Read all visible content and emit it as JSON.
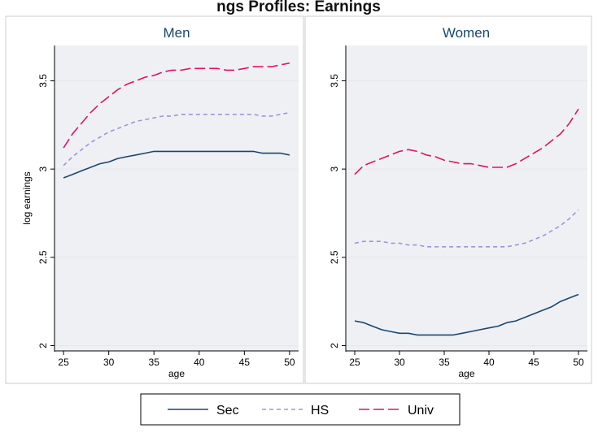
{
  "figure_title": "ngs Profiles: Earnings",
  "colors": {
    "sec": "#1a476f",
    "hs": "#9b96d8",
    "univ": "#e0116a",
    "grid": "#e8e8e8",
    "panel_bg": "#eef0f4"
  },
  "chart_data": [
    {
      "type": "line",
      "title": "Men",
      "xlabel": "age",
      "ylabel": "log earnings",
      "xlim": [
        24,
        51
      ],
      "ylim": [
        1.97,
        3.7
      ],
      "xticks": [
        25,
        30,
        35,
        40,
        45,
        50
      ],
      "yticks": [
        2,
        2.5,
        3,
        3.5
      ],
      "ytick_labels": [
        "2",
        "2.5",
        "3",
        "3.5"
      ],
      "grid": true,
      "x": [
        25,
        26,
        27,
        28,
        29,
        30,
        31,
        32,
        33,
        34,
        35,
        36,
        37,
        38,
        39,
        40,
        41,
        42,
        43,
        44,
        45,
        46,
        47,
        48,
        49,
        50
      ],
      "series": [
        {
          "name": "Sec",
          "dash": "solid",
          "values": [
            2.95,
            2.97,
            2.99,
            3.01,
            3.03,
            3.04,
            3.06,
            3.07,
            3.08,
            3.09,
            3.1,
            3.1,
            3.1,
            3.1,
            3.1,
            3.1,
            3.1,
            3.1,
            3.1,
            3.1,
            3.1,
            3.1,
            3.09,
            3.09,
            3.09,
            3.08
          ]
        },
        {
          "name": "HS",
          "dash": "short",
          "values": [
            3.02,
            3.07,
            3.11,
            3.15,
            3.18,
            3.21,
            3.23,
            3.25,
            3.27,
            3.28,
            3.29,
            3.3,
            3.3,
            3.31,
            3.31,
            3.31,
            3.31,
            3.31,
            3.31,
            3.31,
            3.31,
            3.31,
            3.3,
            3.3,
            3.31,
            3.32
          ]
        },
        {
          "name": "Univ",
          "dash": "long",
          "values": [
            3.12,
            3.2,
            3.26,
            3.32,
            3.37,
            3.41,
            3.45,
            3.48,
            3.5,
            3.52,
            3.53,
            3.55,
            3.56,
            3.56,
            3.57,
            3.57,
            3.57,
            3.57,
            3.56,
            3.56,
            3.57,
            3.58,
            3.58,
            3.58,
            3.59,
            3.6
          ]
        }
      ]
    },
    {
      "type": "line",
      "title": "Women",
      "xlabel": "age",
      "ylabel": "",
      "xlim": [
        24,
        51
      ],
      "ylim": [
        1.97,
        3.7
      ],
      "xticks": [
        25,
        30,
        35,
        40,
        45,
        50
      ],
      "yticks": [
        2,
        2.5,
        3,
        3.5
      ],
      "ytick_labels": [
        "2",
        "2.5",
        "3",
        "3.5"
      ],
      "grid": true,
      "x": [
        25,
        26,
        27,
        28,
        29,
        30,
        31,
        32,
        33,
        34,
        35,
        36,
        37,
        38,
        39,
        40,
        41,
        42,
        43,
        44,
        45,
        46,
        47,
        48,
        49,
        50
      ],
      "series": [
        {
          "name": "Sec",
          "dash": "solid",
          "values": [
            2.14,
            2.13,
            2.11,
            2.09,
            2.08,
            2.07,
            2.07,
            2.06,
            2.06,
            2.06,
            2.06,
            2.06,
            2.07,
            2.08,
            2.09,
            2.1,
            2.11,
            2.13,
            2.14,
            2.16,
            2.18,
            2.2,
            2.22,
            2.25,
            2.27,
            2.29
          ]
        },
        {
          "name": "HS",
          "dash": "short",
          "values": [
            2.58,
            2.59,
            2.59,
            2.59,
            2.58,
            2.58,
            2.57,
            2.57,
            2.56,
            2.56,
            2.56,
            2.56,
            2.56,
            2.56,
            2.56,
            2.56,
            2.56,
            2.56,
            2.57,
            2.58,
            2.6,
            2.62,
            2.65,
            2.68,
            2.72,
            2.77
          ]
        },
        {
          "name": "Univ",
          "dash": "long",
          "values": [
            2.97,
            3.02,
            3.04,
            3.06,
            3.08,
            3.1,
            3.11,
            3.1,
            3.08,
            3.07,
            3.05,
            3.04,
            3.03,
            3.03,
            3.02,
            3.01,
            3.01,
            3.01,
            3.03,
            3.06,
            3.09,
            3.12,
            3.16,
            3.2,
            3.26,
            3.34
          ]
        }
      ]
    }
  ],
  "legend": {
    "position": "bottom",
    "items": [
      {
        "label": "Sec",
        "dash": "solid"
      },
      {
        "label": "HS",
        "dash": "short"
      },
      {
        "label": "Univ",
        "dash": "long"
      }
    ]
  }
}
